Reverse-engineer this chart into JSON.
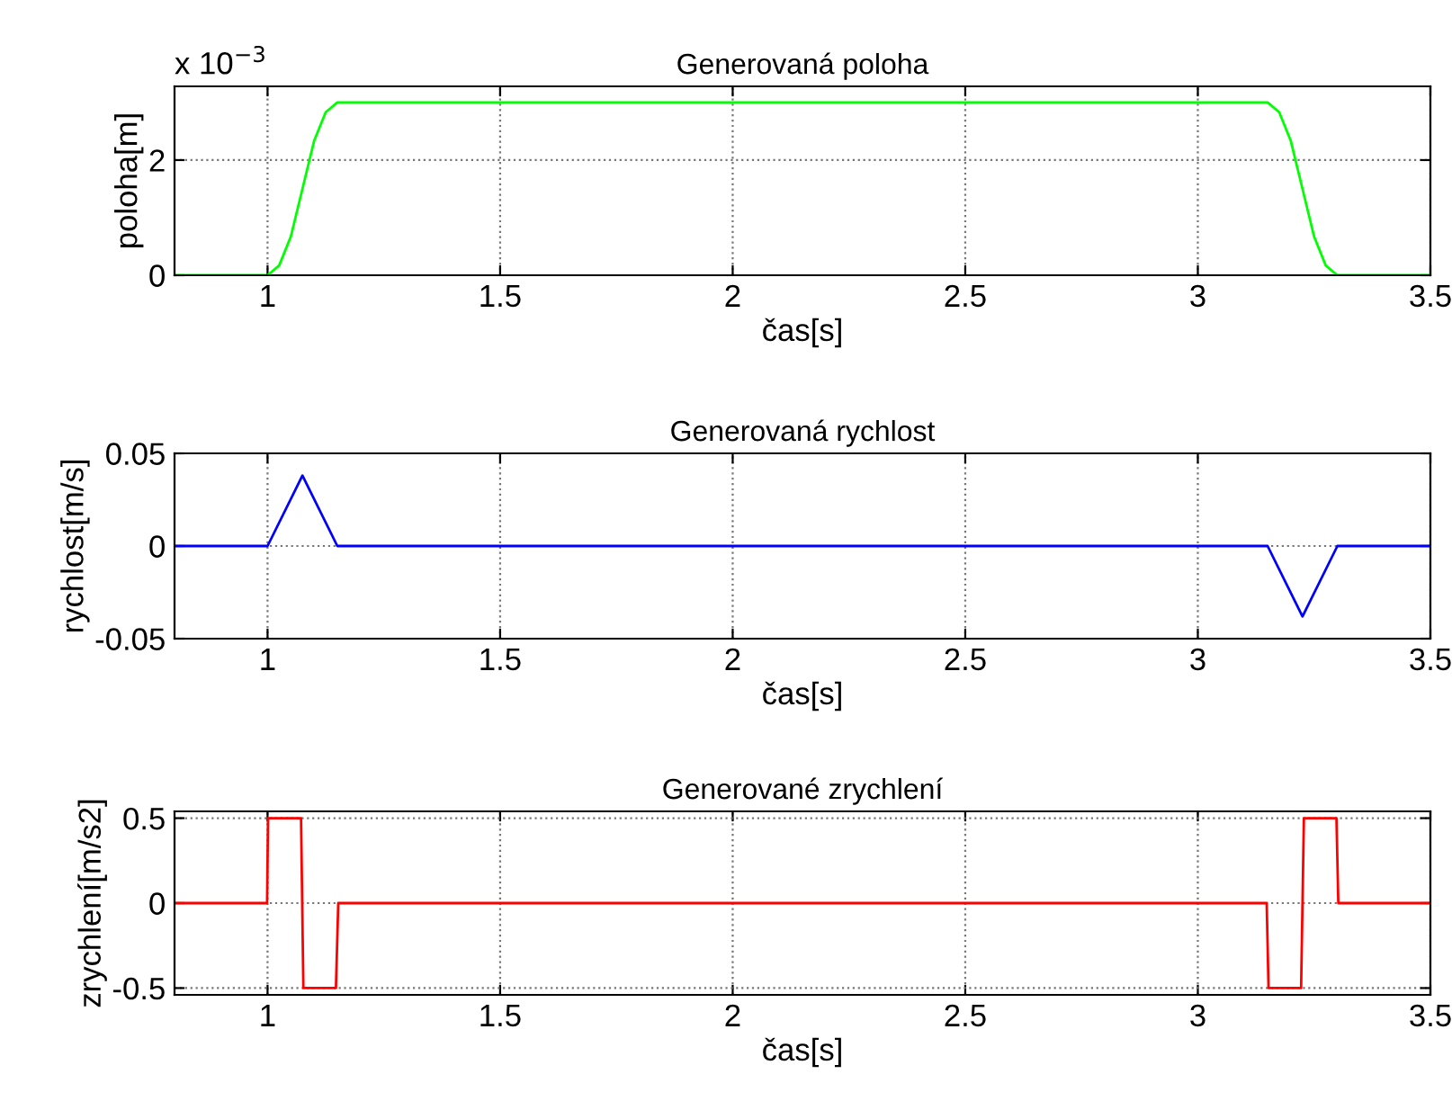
{
  "chart_data": [
    {
      "type": "line",
      "title": "Generovaná poloha",
      "xlabel": "čas[s]",
      "ylabel": "poloha[m]",
      "annotations": [
        "x 10$^{−3}$"
      ],
      "xlim": [
        0.8,
        3.5
      ],
      "xticks": [
        1,
        1.5,
        2,
        2.5,
        3,
        3.5
      ],
      "ylim": [
        0,
        3.28
      ],
      "yticks": [
        0,
        2
      ],
      "grid": true,
      "marker": "none",
      "line_style": "solid",
      "series": [
        {
          "color": "#00ff00",
          "x": [
            0.8,
            1.0,
            1.025,
            1.05,
            1.075,
            1.1,
            1.125,
            1.15,
            3.15,
            3.175,
            3.2,
            3.225,
            3.25,
            3.275,
            3.3,
            3.5
          ],
          "values": [
            0,
            0,
            0.17,
            0.67,
            1.5,
            2.33,
            2.83,
            3.0,
            3.0,
            2.83,
            2.33,
            1.5,
            0.67,
            0.17,
            0,
            0
          ]
        }
      ]
    },
    {
      "type": "line",
      "title": "Generovaná rychlost",
      "xlabel": "čas[s]",
      "ylabel": "rychlost[m/s]",
      "xlim": [
        0.8,
        3.5
      ],
      "xticks": [
        1,
        1.5,
        2,
        2.5,
        3,
        3.5
      ],
      "ylim": [
        -0.05,
        0.05
      ],
      "yticks": [
        -0.05,
        0,
        0.05
      ],
      "grid": true,
      "marker": "none",
      "line_style": "solid",
      "series": [
        {
          "color": "#0000ff",
          "x": [
            0.8,
            1.0,
            1.075,
            1.15,
            3.15,
            3.225,
            3.3,
            3.5
          ],
          "values": [
            0,
            0,
            0.038,
            0,
            0,
            -0.038,
            0,
            0
          ]
        }
      ]
    },
    {
      "type": "line",
      "title": "Generované zrychlení",
      "xlabel": "čas[s]",
      "ylabel": "zrychlení[m/s2]",
      "xlim": [
        0.8,
        3.5
      ],
      "xticks": [
        1,
        1.5,
        2,
        2.5,
        3,
        3.5
      ],
      "ylim": [
        -0.54,
        0.54
      ],
      "yticks": [
        -0.5,
        0,
        0.5
      ],
      "grid": true,
      "marker": "none",
      "line_style": "solid",
      "series": [
        {
          "color": "#ff0000",
          "x": [
            0.8,
            0.999,
            1.001,
            1.072,
            1.077,
            1.147,
            1.152,
            3.148,
            3.152,
            3.222,
            3.228,
            3.298,
            3.302,
            3.5
          ],
          "values": [
            0,
            0,
            0.5,
            0.5,
            -0.5,
            -0.5,
            0,
            0,
            -0.5,
            -0.5,
            0.5,
            0.5,
            0,
            0
          ]
        }
      ]
    }
  ]
}
